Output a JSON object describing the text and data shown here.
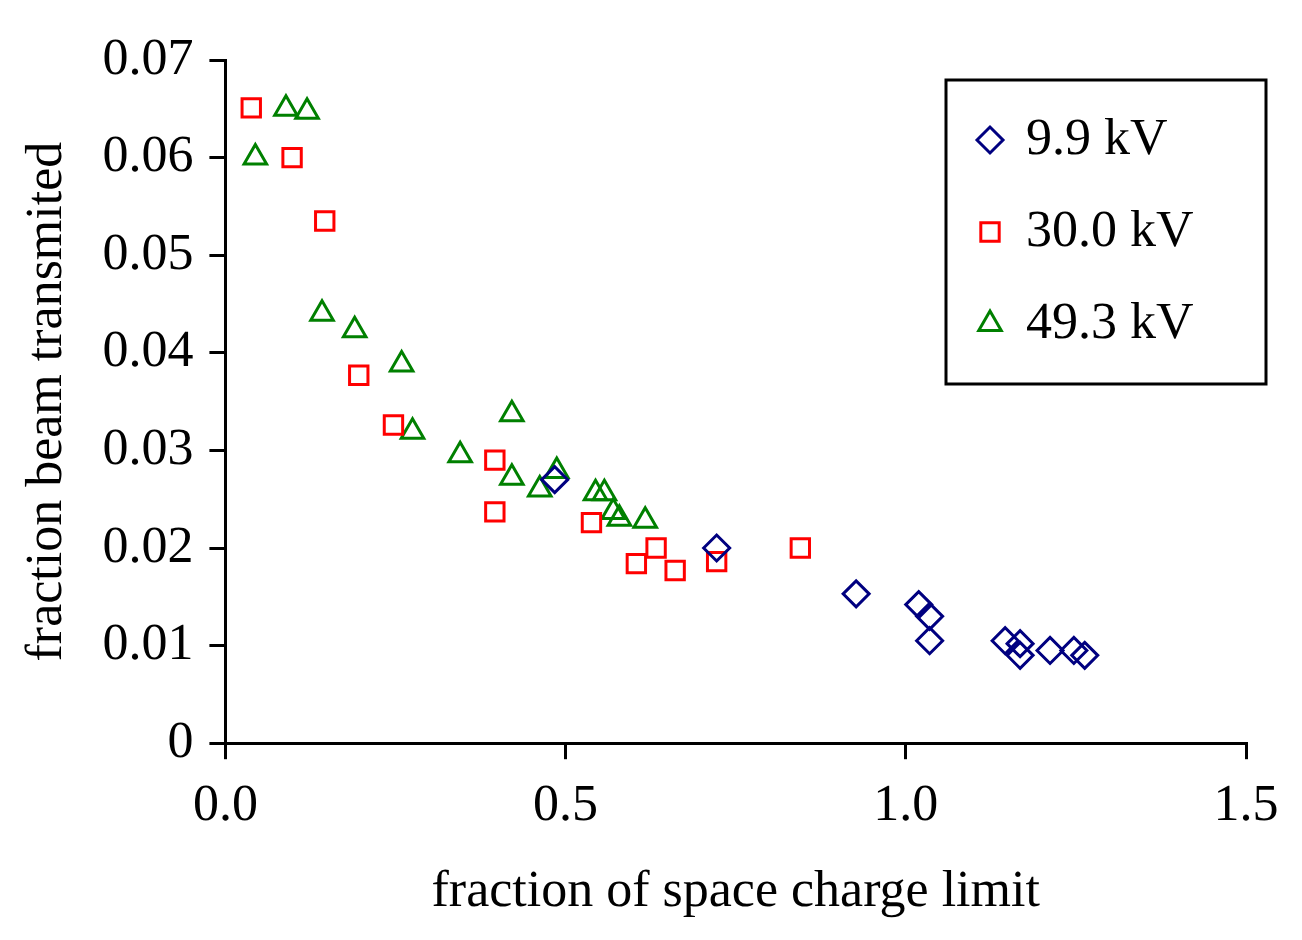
{
  "chart_data": {
    "type": "scatter",
    "xlabel": "fraction of space charge limit",
    "ylabel": "fraction beam transmited",
    "xlim": [
      0,
      1.5
    ],
    "xticks": [
      {
        "value": 0,
        "label": "0.0"
      },
      0.5,
      {
        "value": 1,
        "label": "1.0"
      },
      1.5
    ],
    "ylim": [
      0,
      0.07
    ],
    "yticks": [
      0,
      0.01,
      0.02,
      0.03,
      0.04,
      0.05,
      0.06,
      0.07
    ],
    "grid": false,
    "legend": "top right",
    "series": [
      {
        "name": "9.9 kV",
        "color": "#000080",
        "marker": "diamond",
        "x": [
          0.484,
          0.722,
          0.927,
          1.019,
          1.035,
          1.035,
          1.146,
          1.168,
          1.168,
          1.212,
          1.247,
          1.263
        ],
        "values": [
          0.027,
          0.02,
          0.0153,
          0.0142,
          0.013,
          0.0105,
          0.0105,
          0.0102,
          0.009,
          0.0095,
          0.0095,
          0.009
        ]
      },
      {
        "name": "30.0 kV",
        "color": "#ff0000",
        "marker": "square",
        "x": [
          0.038,
          0.098,
          0.146,
          0.196,
          0.247,
          0.396,
          0.396,
          0.538,
          0.604,
          0.633,
          0.661,
          0.722,
          0.845
        ],
        "values": [
          0.0651,
          0.06,
          0.0535,
          0.0377,
          0.0326,
          0.029,
          0.0237,
          0.0226,
          0.0184,
          0.02,
          0.0177,
          0.0186,
          0.02
        ]
      },
      {
        "name": "49.3 kV",
        "color": "#008000",
        "marker": "triangle",
        "x": [
          0.044,
          0.089,
          0.12,
          0.142,
          0.19,
          0.259,
          0.275,
          0.345,
          0.421,
          0.421,
          0.462,
          0.487,
          0.544,
          0.557,
          0.57,
          0.579,
          0.617
        ],
        "values": [
          0.06,
          0.065,
          0.0647,
          0.044,
          0.0423,
          0.0388,
          0.0319,
          0.0295,
          0.0337,
          0.0272,
          0.026,
          0.0279,
          0.0256,
          0.0256,
          0.0237,
          0.023,
          0.0228
        ]
      }
    ]
  }
}
